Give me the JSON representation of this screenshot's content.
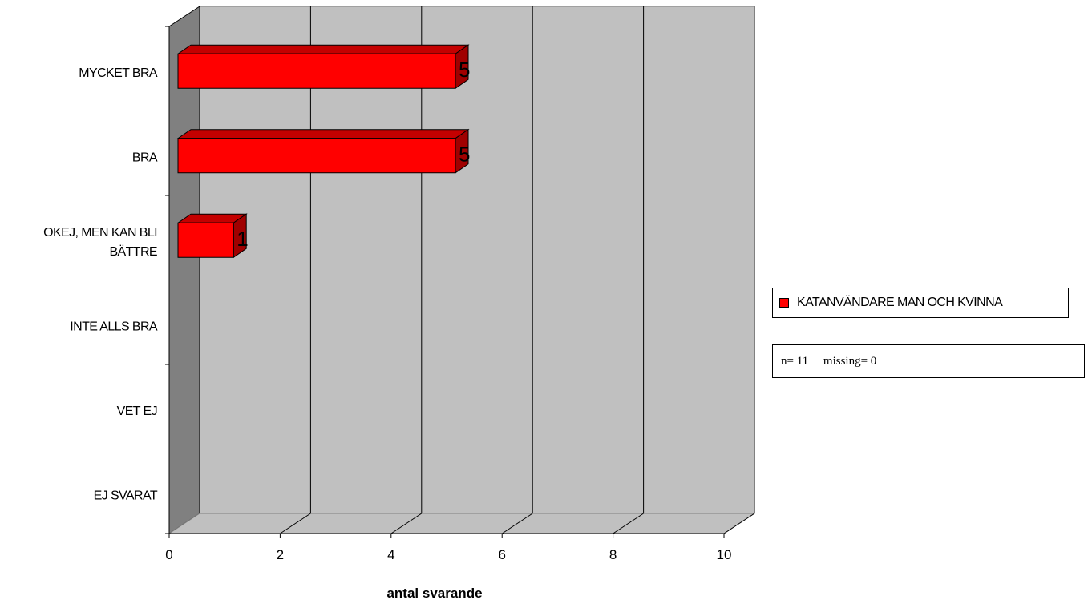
{
  "chart_data": {
    "type": "bar",
    "orientation": "horizontal",
    "categories": [
      [
        "MYCKET BRA"
      ],
      [
        "BRA"
      ],
      [
        "OKEJ, MEN KAN BLI",
        "BÄTTRE"
      ],
      [
        "INTE ALLS BRA"
      ],
      [
        "VET EJ"
      ],
      [
        "EJ SVARAT"
      ]
    ],
    "series": [
      {
        "name": "KATANVÄNDARE MAN OCH KVINNA",
        "values": [
          5,
          5,
          1,
          0,
          0,
          0
        ],
        "color": "#ff0000"
      }
    ],
    "data_labels": [
      "5",
      "5",
      "1",
      "",
      "",
      ""
    ],
    "xlabel": "antal svarande",
    "xlim": [
      0,
      10
    ],
    "x_ticks": [
      "0",
      "2",
      "4",
      "6",
      "8",
      "10"
    ],
    "gridlines": true,
    "three_d": true,
    "legend_position": "right",
    "colors": {
      "bar": "#ff0000",
      "bar_top": "#c40000",
      "bar_side": "#a00000",
      "wall": "#c0c0c0",
      "side_wall": "#808080",
      "floor": "#c0c0c0"
    }
  },
  "note": {
    "text": "n= 11     missing= 0"
  }
}
